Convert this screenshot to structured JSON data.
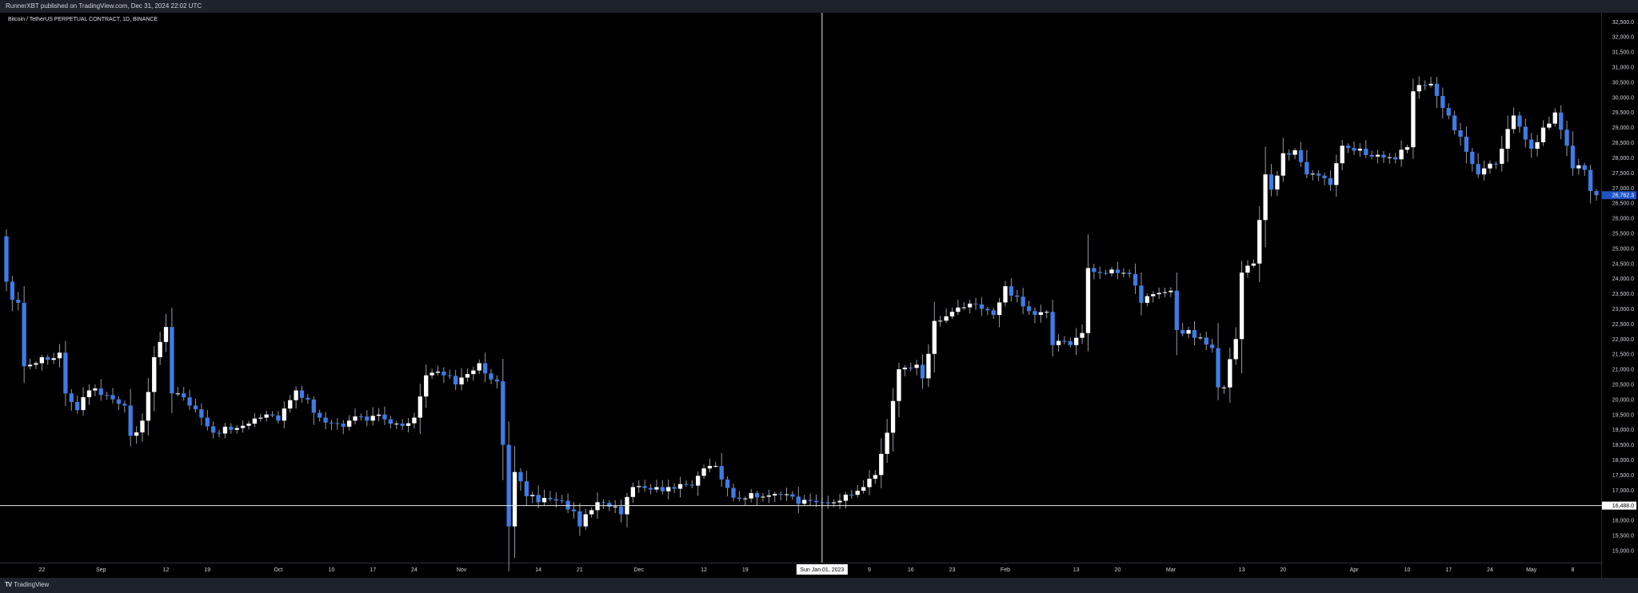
{
  "header": {
    "published_text": "RunnerXBT published on TradingView.com, Dec 31, 2024 22:02 UTC"
  },
  "symbol": {
    "title": "Bitcoin / TetherUS PERPETUAL CONTRACT, 1D, BINANCE"
  },
  "crosshair": {
    "date_label": "Sun Jan 01, 2023",
    "price_label": "16,488.0"
  },
  "last_price_label": "26,762.3",
  "footer": {
    "brand": "TradingView",
    "brand_mark": "TV"
  },
  "colors": {
    "up_candle": "#ffffff",
    "down_candle": "#3d7ce6",
    "wick": "#9598a1",
    "axis_text": "#d1d4dc",
    "crosshair": "#e8e8e8",
    "last_price_bg": "#1e53c6"
  },
  "chart_data": {
    "type": "candlestick",
    "title": "Bitcoin / TetherUS PERPETUAL CONTRACT, 1D, BINANCE",
    "y_axis": {
      "range": [
        14600,
        32800
      ],
      "ticks": [
        15000,
        15500,
        16000,
        16500,
        17000,
        17500,
        18000,
        18500,
        19000,
        19500,
        20000,
        20500,
        21000,
        21500,
        22000,
        22500,
        23000,
        23500,
        24000,
        24500,
        25000,
        25500,
        26000,
        26500,
        27000,
        27500,
        28000,
        28500,
        29000,
        29500,
        30000,
        30500,
        31000,
        31500,
        32000,
        32500
      ],
      "tick_labels": [
        "15,000.0",
        "15,500.0",
        "16,000.0",
        "16,500.0",
        "17,000.0",
        "17,500.0",
        "18,000.0",
        "18,500.0",
        "19,000.0",
        "19,500.0",
        "20,000.0",
        "20,500.0",
        "21,000.0",
        "21,500.0",
        "22,000.0",
        "22,500.0",
        "23,000.0",
        "23,500.0",
        "24,000.0",
        "24,500.0",
        "25,000.0",
        "25,500.0",
        "26,000.0",
        "26,500.0",
        "27,000.0",
        "27,500.0",
        "28,000.0",
        "28,500.0",
        "29,000.0",
        "29,500.0",
        "30,000.0",
        "30,500.0",
        "31,000.0",
        "31,500.0",
        "32,000.0",
        "32,500.0"
      ]
    },
    "x_axis": {
      "first_date": "2022-08-16",
      "last_date": "2023-05-12",
      "tick_labels": [
        {
          "label": "22",
          "date": "2022-08-22"
        },
        {
          "label": "Sep",
          "date": "2022-09-01"
        },
        {
          "label": "12",
          "date": "2022-09-12"
        },
        {
          "label": "19",
          "date": "2022-09-19"
        },
        {
          "label": "Oct",
          "date": "2022-10-01"
        },
        {
          "label": "10",
          "date": "2022-10-10"
        },
        {
          "label": "17",
          "date": "2022-10-17"
        },
        {
          "label": "24",
          "date": "2022-10-24"
        },
        {
          "label": "Nov",
          "date": "2022-11-01"
        },
        {
          "label": "14",
          "date": "2022-11-14"
        },
        {
          "label": "21",
          "date": "2022-11-21"
        },
        {
          "label": "Dec",
          "date": "2022-12-01"
        },
        {
          "label": "12",
          "date": "2022-12-12"
        },
        {
          "label": "19",
          "date": "2022-12-19"
        },
        {
          "label": "9",
          "date": "2023-01-09"
        },
        {
          "label": "16",
          "date": "2023-01-16"
        },
        {
          "label": "23",
          "date": "2023-01-23"
        },
        {
          "label": "Feb",
          "date": "2023-02-01"
        },
        {
          "label": "13",
          "date": "2023-02-13"
        },
        {
          "label": "20",
          "date": "2023-02-20"
        },
        {
          "label": "Mar",
          "date": "2023-03-01"
        },
        {
          "label": "13",
          "date": "2023-03-13"
        },
        {
          "label": "20",
          "date": "2023-03-20"
        },
        {
          "label": "Apr",
          "date": "2023-04-01"
        },
        {
          "label": "10",
          "date": "2023-04-10"
        },
        {
          "label": "17",
          "date": "2023-04-17"
        },
        {
          "label": "24",
          "date": "2023-04-24"
        },
        {
          "label": "May",
          "date": "2023-05-01"
        },
        {
          "label": "8",
          "date": "2023-05-08"
        }
      ]
    },
    "crosshair_date": "2023-01-01",
    "crosshair_price": 16488.0,
    "last_price": 26762.3,
    "series": [
      {
        "close_anchors": [
          {
            "date": "2022-08-16",
            "close": 23900
          },
          {
            "date": "2022-08-17",
            "close": 23300
          },
          {
            "date": "2022-08-18",
            "close": 23200
          },
          {
            "date": "2022-08-19",
            "close": 21100
          },
          {
            "date": "2022-08-20",
            "close": 21150
          },
          {
            "date": "2022-08-22",
            "close": 21400
          },
          {
            "date": "2022-08-25",
            "close": 21550
          },
          {
            "date": "2022-08-26",
            "close": 20200
          },
          {
            "date": "2022-08-28",
            "close": 19650
          },
          {
            "date": "2022-08-30",
            "close": 20300
          },
          {
            "date": "2022-09-01",
            "close": 20150
          },
          {
            "date": "2022-09-05",
            "close": 19800
          },
          {
            "date": "2022-09-06",
            "close": 18800
          },
          {
            "date": "2022-09-08",
            "close": 19300
          },
          {
            "date": "2022-09-10",
            "close": 21400
          },
          {
            "date": "2022-09-12",
            "close": 22400
          },
          {
            "date": "2022-09-13",
            "close": 20200
          },
          {
            "date": "2022-09-16",
            "close": 19800
          },
          {
            "date": "2022-09-18",
            "close": 19400
          },
          {
            "date": "2022-09-20",
            "close": 18900
          },
          {
            "date": "2022-09-22",
            "close": 19100
          },
          {
            "date": "2022-09-26",
            "close": 19200
          },
          {
            "date": "2022-09-28",
            "close": 19400
          },
          {
            "date": "2022-10-01",
            "close": 19300
          },
          {
            "date": "2022-10-04",
            "close": 20300
          },
          {
            "date": "2022-10-06",
            "close": 20000
          },
          {
            "date": "2022-10-08",
            "close": 19400
          },
          {
            "date": "2022-10-12",
            "close": 19100
          },
          {
            "date": "2022-10-13",
            "close": 19300
          },
          {
            "date": "2022-10-16",
            "close": 19300
          },
          {
            "date": "2022-10-18",
            "close": 19500
          },
          {
            "date": "2022-10-21",
            "close": 19200
          },
          {
            "date": "2022-10-24",
            "close": 19400
          },
          {
            "date": "2022-10-25",
            "close": 20100
          },
          {
            "date": "2022-10-26",
            "close": 20800
          },
          {
            "date": "2022-10-29",
            "close": 20800
          },
          {
            "date": "2022-10-31",
            "close": 20500
          },
          {
            "date": "2022-11-04",
            "close": 21200
          },
          {
            "date": "2022-11-07",
            "close": 20600
          },
          {
            "date": "2022-11-08",
            "close": 18500
          },
          {
            "date": "2022-11-09",
            "close": 15800
          },
          {
            "date": "2022-11-10",
            "close": 17600
          },
          {
            "date": "2022-11-12",
            "close": 16800
          },
          {
            "date": "2022-11-14",
            "close": 16600
          },
          {
            "date": "2022-11-16",
            "close": 16700
          },
          {
            "date": "2022-11-18",
            "close": 16650
          },
          {
            "date": "2022-11-20",
            "close": 16300
          },
          {
            "date": "2022-11-21",
            "close": 15800
          },
          {
            "date": "2022-11-22",
            "close": 16200
          },
          {
            "date": "2022-11-24",
            "close": 16600
          },
          {
            "date": "2022-11-26",
            "close": 16450
          },
          {
            "date": "2022-11-28",
            "close": 16200
          },
          {
            "date": "2022-11-30",
            "close": 17100
          },
          {
            "date": "2022-12-04",
            "close": 17100
          },
          {
            "date": "2022-12-06",
            "close": 17100
          },
          {
            "date": "2022-12-08",
            "close": 17200
          },
          {
            "date": "2022-12-10",
            "close": 17150
          },
          {
            "date": "2022-12-13",
            "close": 17800
          },
          {
            "date": "2022-12-14",
            "close": 17800
          },
          {
            "date": "2022-12-15",
            "close": 17350
          },
          {
            "date": "2022-12-17",
            "close": 16750
          },
          {
            "date": "2022-12-20",
            "close": 16900
          },
          {
            "date": "2022-12-25",
            "close": 16850
          },
          {
            "date": "2022-12-28",
            "close": 16550
          },
          {
            "date": "2023-01-01",
            "close": 16600
          },
          {
            "date": "2023-01-05",
            "close": 16850
          },
          {
            "date": "2023-01-08",
            "close": 17100
          },
          {
            "date": "2023-01-10",
            "close": 17500
          },
          {
            "date": "2023-01-11",
            "close": 18200
          },
          {
            "date": "2023-01-12",
            "close": 18900
          },
          {
            "date": "2023-01-13",
            "close": 19950
          },
          {
            "date": "2023-01-14",
            "close": 21000
          },
          {
            "date": "2023-01-17",
            "close": 21150
          },
          {
            "date": "2023-01-18",
            "close": 20700
          },
          {
            "date": "2023-01-20",
            "close": 22600
          },
          {
            "date": "2023-01-25",
            "close": 23050
          },
          {
            "date": "2023-01-28",
            "close": 23000
          },
          {
            "date": "2023-01-30",
            "close": 22800
          },
          {
            "date": "2023-02-01",
            "close": 23750
          },
          {
            "date": "2023-02-03",
            "close": 23400
          },
          {
            "date": "2023-02-06",
            "close": 22800
          },
          {
            "date": "2023-02-08",
            "close": 22900
          },
          {
            "date": "2023-02-09",
            "close": 21800
          },
          {
            "date": "2023-02-12",
            "close": 21800
          },
          {
            "date": "2023-02-14",
            "close": 22200
          },
          {
            "date": "2023-02-15",
            "close": 24350
          },
          {
            "date": "2023-02-19",
            "close": 24300
          },
          {
            "date": "2023-02-22",
            "close": 24150
          },
          {
            "date": "2023-02-24",
            "close": 23200
          },
          {
            "date": "2023-03-01",
            "close": 23600
          },
          {
            "date": "2023-03-02",
            "close": 22300
          },
          {
            "date": "2023-03-04",
            "close": 22300
          },
          {
            "date": "2023-03-06",
            "close": 22050
          },
          {
            "date": "2023-03-08",
            "close": 21700
          },
          {
            "date": "2023-03-09",
            "close": 20400
          },
          {
            "date": "2023-03-10",
            "close": 20400
          },
          {
            "date": "2023-03-12",
            "close": 22000
          },
          {
            "date": "2023-03-13",
            "close": 24200
          },
          {
            "date": "2023-03-15",
            "close": 24500
          },
          {
            "date": "2023-03-17",
            "close": 27450
          },
          {
            "date": "2023-03-18",
            "close": 26950
          },
          {
            "date": "2023-03-20",
            "close": 28150
          },
          {
            "date": "2023-03-22",
            "close": 28250
          },
          {
            "date": "2023-03-24",
            "close": 27450
          },
          {
            "date": "2023-03-28",
            "close": 27100
          },
          {
            "date": "2023-03-30",
            "close": 28400
          },
          {
            "date": "2023-04-02",
            "close": 28300
          },
          {
            "date": "2023-04-05",
            "close": 28100
          },
          {
            "date": "2023-04-08",
            "close": 27950
          },
          {
            "date": "2023-04-10",
            "close": 28350
          },
          {
            "date": "2023-04-11",
            "close": 30200
          },
          {
            "date": "2023-04-13",
            "close": 30400
          },
          {
            "date": "2023-04-14",
            "close": 30450
          },
          {
            "date": "2023-04-17",
            "close": 29400
          },
          {
            "date": "2023-04-19",
            "close": 28700
          },
          {
            "date": "2023-04-20",
            "close": 28200
          },
          {
            "date": "2023-04-22",
            "close": 27450
          },
          {
            "date": "2023-04-25",
            "close": 27800
          },
          {
            "date": "2023-04-26",
            "close": 28300
          },
          {
            "date": "2023-04-28",
            "close": 29400
          },
          {
            "date": "2023-05-01",
            "close": 28300
          },
          {
            "date": "2023-05-03",
            "close": 29000
          },
          {
            "date": "2023-05-05",
            "close": 29500
          },
          {
            "date": "2023-05-07",
            "close": 28400
          },
          {
            "date": "2023-05-08",
            "close": 27650
          },
          {
            "date": "2023-05-10",
            "close": 27600
          },
          {
            "date": "2023-05-11",
            "close": 26900
          },
          {
            "date": "2023-05-12",
            "close": 26762
          }
        ]
      }
    ]
  }
}
